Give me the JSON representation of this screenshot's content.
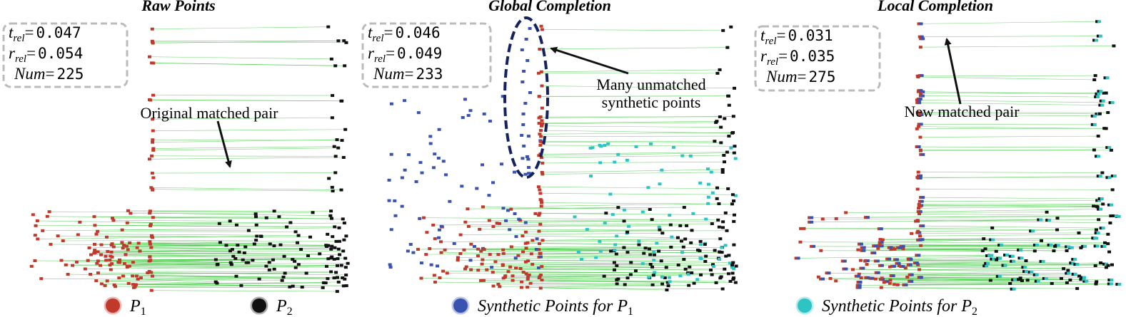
{
  "panels": [
    {
      "title": "Raw Points",
      "t": 0.047,
      "r": 0.054,
      "num": 225
    },
    {
      "title": "Global Completion",
      "t": 0.046,
      "r": 0.049,
      "num": 233
    },
    {
      "title": "Local Completion",
      "t": 0.031,
      "r": 0.035,
      "num": 275
    }
  ],
  "metric_labels": {
    "t": "t",
    "r": "r",
    "sub": "rel",
    "num": "Num",
    "equals": "="
  },
  "annotations": {
    "original": "Original matched pair",
    "unmatched_1": "Many unmatched",
    "unmatched_2": "synthetic points",
    "new": "New matched pair"
  },
  "legend": [
    {
      "text": "",
      "symbol": "P",
      "sub": "1",
      "color": "#c0392b"
    },
    {
      "text": "",
      "symbol": "P",
      "sub": "2",
      "color": "#111111"
    },
    {
      "text": "Synthetic Points for",
      "symbol": "P",
      "sub": "1",
      "color": "#3a52b0"
    },
    {
      "text": "Synthetic Points for",
      "symbol": "P",
      "sub": "2",
      "color": "#2ec4c4"
    }
  ]
}
